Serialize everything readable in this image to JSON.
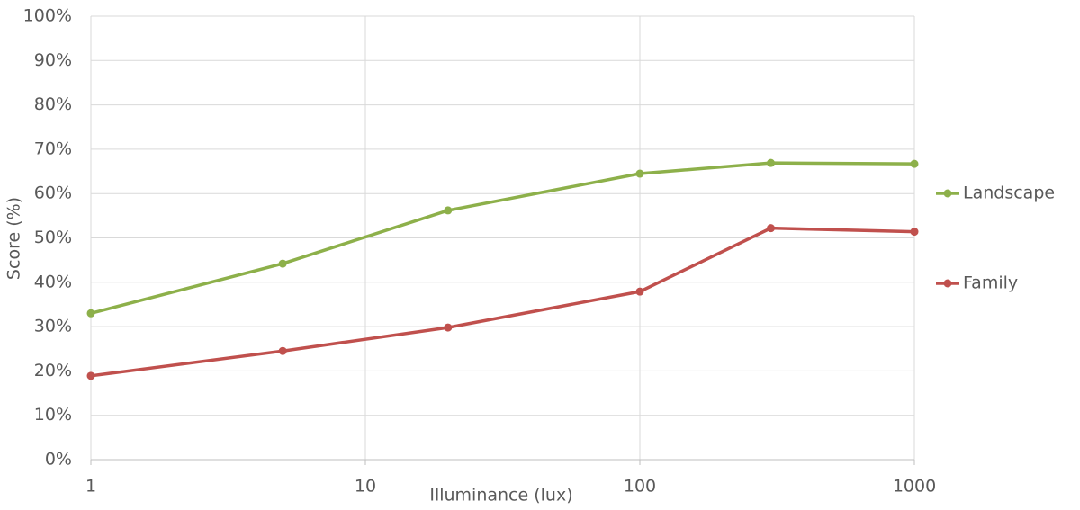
{
  "chart_data": {
    "type": "line",
    "x": [
      1,
      5,
      20,
      100,
      300,
      1000
    ],
    "series": [
      {
        "name": "Landscape",
        "color": "#8db04a",
        "values": [
          33,
          44.2,
          56.2,
          64.5,
          66.9,
          66.7
        ]
      },
      {
        "name": "Family",
        "color": "#c0504d",
        "values": [
          18.9,
          24.5,
          29.8,
          37.9,
          52.2,
          51.4
        ]
      }
    ],
    "xlabel": "Illuminance (lux)",
    "ylabel": "Score (%)",
    "xscale": "log",
    "xlim": [
      1,
      1000
    ],
    "xticks": [
      1,
      10,
      100,
      1000
    ],
    "ylim": [
      0,
      100
    ],
    "yticks": [
      {
        "value": 0,
        "label": "0%"
      },
      {
        "value": 10,
        "label": "10%"
      },
      {
        "value": 20,
        "label": "20%"
      },
      {
        "value": 30,
        "label": "30%"
      },
      {
        "value": 40,
        "label": "40%"
      },
      {
        "value": 50,
        "label": "50%"
      },
      {
        "value": 60,
        "label": "60%"
      },
      {
        "value": 70,
        "label": "70%"
      },
      {
        "value": 80,
        "label": "80%"
      },
      {
        "value": 90,
        "label": "90%"
      },
      {
        "value": 100,
        "label": "100%"
      }
    ],
    "grid": true,
    "legend": "right"
  }
}
